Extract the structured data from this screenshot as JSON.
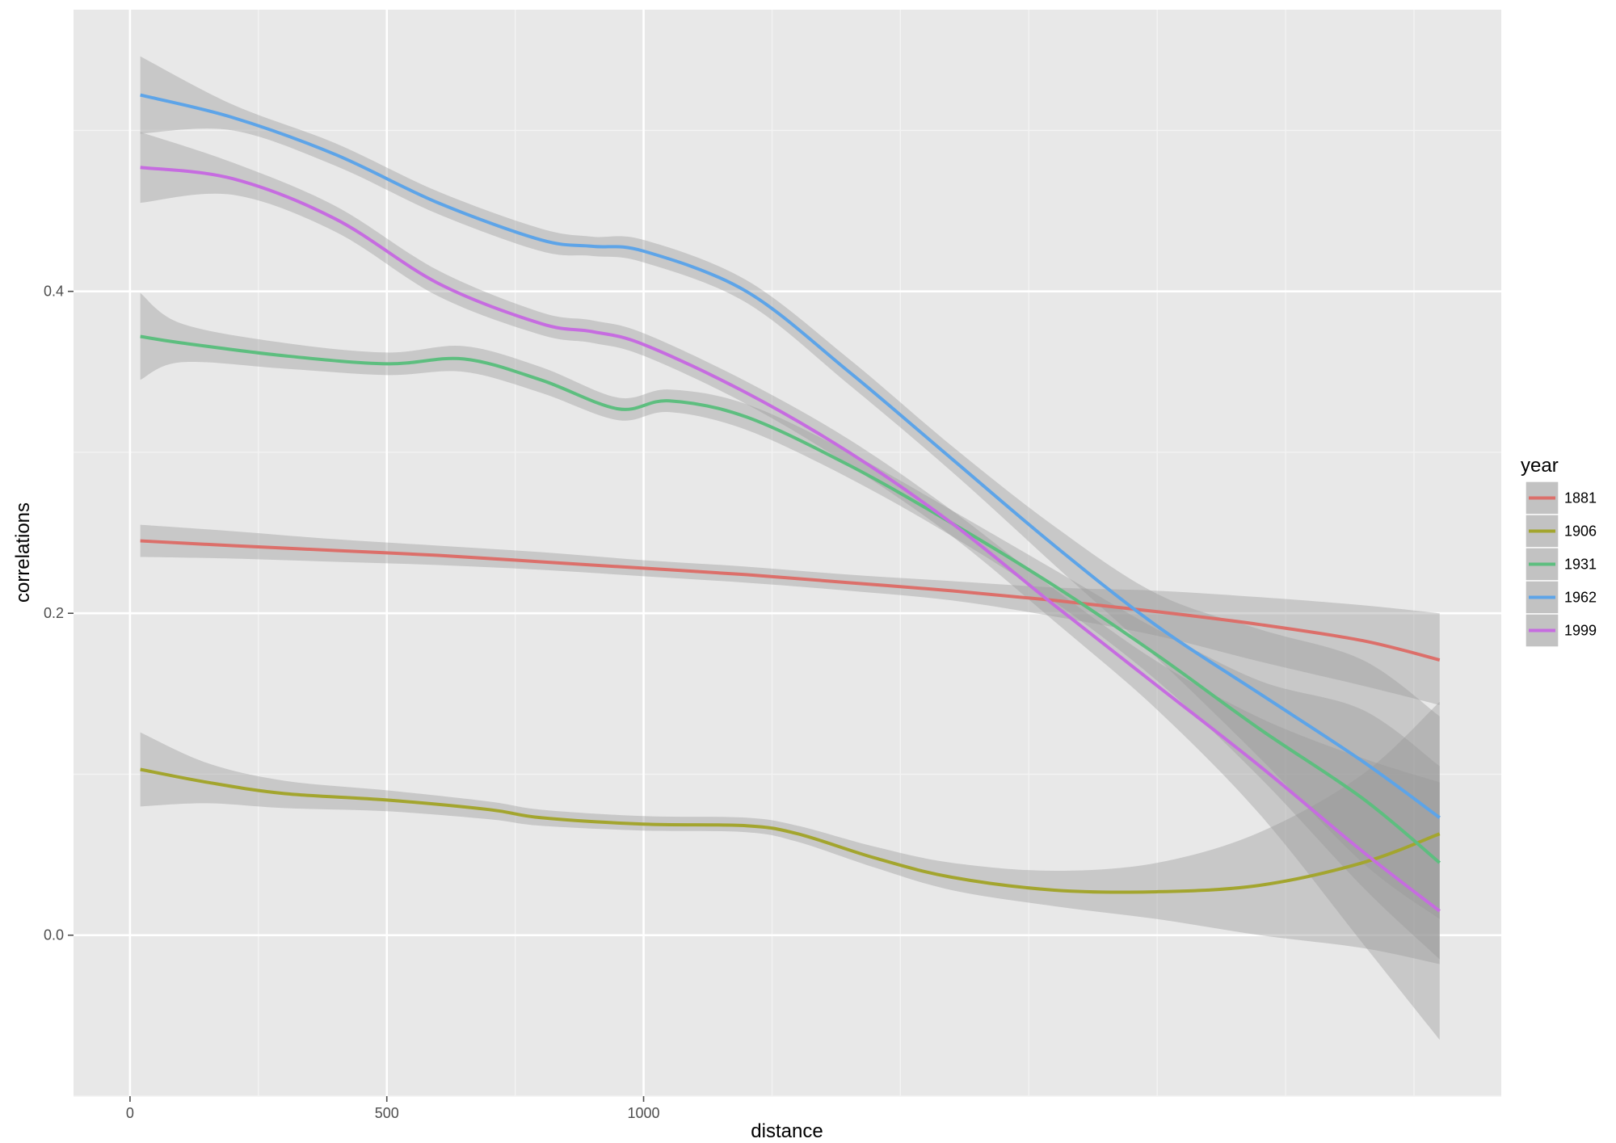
{
  "chart_data": {
    "type": "line",
    "title": "",
    "xlabel": "distance",
    "ylabel": "correlations",
    "xlim": [
      -110,
      2670
    ],
    "ylim": [
      -0.1,
      0.575
    ],
    "x_ticks": [
      0,
      500,
      1000
    ],
    "x_tick_labels": [
      "0",
      "500",
      "1000"
    ],
    "y_ticks": [
      0.0,
      0.2,
      0.4
    ],
    "y_tick_labels": [
      "0.0",
      "0.2",
      "0.4"
    ],
    "grid": true,
    "background": "#e8e8e8",
    "legend": {
      "title": "year",
      "position": "right"
    },
    "series": [
      {
        "name": "1881",
        "color": "#dc6f6a",
        "x": [
          20,
          200,
          400,
          600,
          800,
          1000,
          1200,
          1400,
          1600,
          1800,
          2000,
          2200,
          2400,
          2550
        ],
        "y": [
          0.245,
          0.242,
          0.239,
          0.236,
          0.232,
          0.228,
          0.224,
          0.219,
          0.214,
          0.208,
          0.201,
          0.193,
          0.183,
          0.171
        ],
        "lower": [
          0.235,
          0.234,
          0.232,
          0.23,
          0.227,
          0.223,
          0.219,
          0.214,
          0.208,
          0.198,
          0.186,
          0.17,
          0.155,
          0.143
        ],
        "upper": [
          0.255,
          0.251,
          0.246,
          0.242,
          0.238,
          0.233,
          0.229,
          0.224,
          0.22,
          0.216,
          0.214,
          0.21,
          0.205,
          0.2
        ]
      },
      {
        "name": "1906",
        "color": "#a3a52e",
        "x": [
          20,
          150,
          300,
          500,
          700,
          800,
          1000,
          1200,
          1300,
          1450,
          1600,
          1800,
          2000,
          2200,
          2400,
          2550
        ],
        "y": [
          0.103,
          0.095,
          0.088,
          0.084,
          0.078,
          0.073,
          0.069,
          0.068,
          0.063,
          0.048,
          0.036,
          0.028,
          0.027,
          0.031,
          0.045,
          0.063
        ],
        "lower": [
          0.08,
          0.082,
          0.079,
          0.077,
          0.072,
          0.068,
          0.065,
          0.064,
          0.058,
          0.042,
          0.028,
          0.018,
          0.01,
          0.0,
          -0.008,
          -0.018
        ],
        "upper": [
          0.126,
          0.107,
          0.096,
          0.09,
          0.083,
          0.078,
          0.074,
          0.073,
          0.068,
          0.055,
          0.045,
          0.04,
          0.045,
          0.064,
          0.1,
          0.145
        ]
      },
      {
        "name": "1931",
        "color": "#5dbe7f",
        "x": [
          20,
          100,
          300,
          500,
          650,
          800,
          950,
          1050,
          1200,
          1400,
          1600,
          1800,
          2000,
          2200,
          2400,
          2550
        ],
        "y": [
          0.372,
          0.368,
          0.36,
          0.355,
          0.358,
          0.345,
          0.327,
          0.332,
          0.322,
          0.292,
          0.256,
          0.217,
          0.174,
          0.128,
          0.085,
          0.045
        ],
        "lower": [
          0.345,
          0.356,
          0.352,
          0.348,
          0.35,
          0.337,
          0.32,
          0.325,
          0.314,
          0.284,
          0.248,
          0.207,
          0.158,
          0.098,
          0.03,
          -0.015
        ],
        "upper": [
          0.399,
          0.38,
          0.368,
          0.362,
          0.366,
          0.353,
          0.334,
          0.339,
          0.33,
          0.3,
          0.264,
          0.227,
          0.19,
          0.158,
          0.14,
          0.105
        ]
      },
      {
        "name": "1962",
        "color": "#5da4e8",
        "x": [
          20,
          200,
          400,
          600,
          800,
          900,
          1000,
          1200,
          1400,
          1600,
          1800,
          2000,
          2200,
          2400,
          2550
        ],
        "y": [
          0.522,
          0.508,
          0.485,
          0.455,
          0.432,
          0.428,
          0.425,
          0.4,
          0.35,
          0.296,
          0.242,
          0.192,
          0.15,
          0.108,
          0.073
        ],
        "lower": [
          0.498,
          0.5,
          0.478,
          0.448,
          0.425,
          0.422,
          0.418,
          0.393,
          0.342,
          0.288,
          0.23,
          0.172,
          0.11,
          0.045,
          0.01
        ],
        "upper": [
          0.546,
          0.516,
          0.492,
          0.462,
          0.439,
          0.434,
          0.432,
          0.407,
          0.358,
          0.304,
          0.254,
          0.212,
          0.19,
          0.171,
          0.136
        ]
      },
      {
        "name": "1999",
        "color": "#c66ce0",
        "x": [
          20,
          200,
          400,
          600,
          800,
          900,
          1000,
          1200,
          1400,
          1600,
          1800,
          2000,
          2200,
          2400,
          2550
        ],
        "y": [
          0.477,
          0.47,
          0.445,
          0.405,
          0.38,
          0.375,
          0.367,
          0.337,
          0.3,
          0.256,
          0.205,
          0.155,
          0.105,
          0.052,
          0.015
        ],
        "lower": [
          0.455,
          0.46,
          0.437,
          0.397,
          0.373,
          0.368,
          0.36,
          0.33,
          0.292,
          0.248,
          0.195,
          0.14,
          0.075,
          -0.005,
          -0.065
        ],
        "upper": [
          0.499,
          0.48,
          0.453,
          0.413,
          0.387,
          0.382,
          0.374,
          0.344,
          0.308,
          0.264,
          0.215,
          0.17,
          0.135,
          0.11,
          0.095
        ]
      }
    ]
  }
}
